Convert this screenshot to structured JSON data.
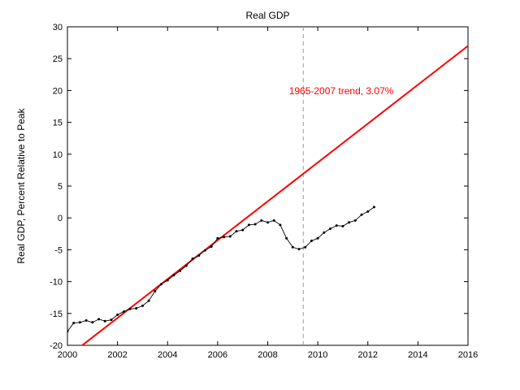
{
  "window": {
    "background": "#ffffff"
  },
  "chart_data": {
    "type": "line",
    "title": "Real GDP",
    "xlabel": "",
    "ylabel": "Real GDP, Percent Relative to Peak",
    "xlim": [
      2000,
      2016
    ],
    "ylim": [
      -20,
      30
    ],
    "xticks": [
      2000,
      2002,
      2004,
      2006,
      2008,
      2010,
      2012,
      2014,
      2016
    ],
    "xtick_labels": [
      "2000",
      "2002",
      "2004",
      "2006",
      "2008",
      "2010",
      "2012",
      "2014",
      "2016"
    ],
    "yticks": [
      -20,
      -15,
      -10,
      -5,
      0,
      5,
      10,
      15,
      20,
      25,
      30
    ],
    "ytick_labels": [
      "-20",
      "-15",
      "-10",
      "-5",
      "0",
      "5",
      "10",
      "15",
      "20",
      "25",
      "30"
    ],
    "grid": false,
    "box": true,
    "legend": "none",
    "series": [
      {
        "name": "1965-2007 trend, 3.07%",
        "role": "trend-line",
        "color": "#ff0000",
        "style": "solid",
        "width": 2,
        "markers": false,
        "x": [
          2000,
          2016
        ],
        "y": [
          -21.8,
          27.0
        ]
      },
      {
        "name": "Real GDP, Percent Relative to Peak",
        "role": "gdp-line",
        "color": "#000000",
        "style": "solid",
        "width": 0.9,
        "markers": true,
        "marker_radius": 1.5,
        "x": [
          2000,
          2000.25,
          2000.5,
          2000.75,
          2001,
          2001.25,
          2001.5,
          2001.75,
          2002,
          2002.25,
          2002.5,
          2002.75,
          2003,
          2003.25,
          2003.5,
          2003.75,
          2004,
          2004.25,
          2004.5,
          2004.75,
          2005,
          2005.25,
          2005.5,
          2005.75,
          2006,
          2006.25,
          2006.5,
          2006.75,
          2007,
          2007.25,
          2007.5,
          2007.75,
          2008,
          2008.25,
          2008.5,
          2008.75,
          2009,
          2009.25,
          2009.5,
          2009.75,
          2010,
          2010.25,
          2010.5,
          2010.75,
          2011,
          2011.25,
          2011.5,
          2011.75,
          2012,
          2012.25
        ],
        "y": [
          -17.8,
          -16.5,
          -16.4,
          -16.1,
          -16.4,
          -15.9,
          -16.2,
          -16.0,
          -15.2,
          -14.7,
          -14.3,
          -14.2,
          -13.8,
          -13.0,
          -11.5,
          -10.4,
          -9.8,
          -9.0,
          -8.3,
          -7.5,
          -6.4,
          -5.9,
          -5.1,
          -4.5,
          -3.2,
          -3.0,
          -2.9,
          -2.1,
          -1.9,
          -1.1,
          -1.0,
          -0.4,
          -0.7,
          -0.4,
          -1.1,
          -3.2,
          -4.6,
          -4.9,
          -4.6,
          -3.6,
          -3.2,
          -2.3,
          -1.7,
          -1.2,
          -1.3,
          -0.7,
          -0.4,
          0.5,
          1.0,
          1.7
        ]
      }
    ],
    "reference_line": {
      "orientation": "vertical",
      "x": 2009.42,
      "color": "#999999",
      "style": "dashed"
    },
    "annotation": {
      "text": "1965-2007 trend, 3.07%",
      "x": 2008.85,
      "y": 19.4,
      "color": "#ff0000"
    }
  }
}
